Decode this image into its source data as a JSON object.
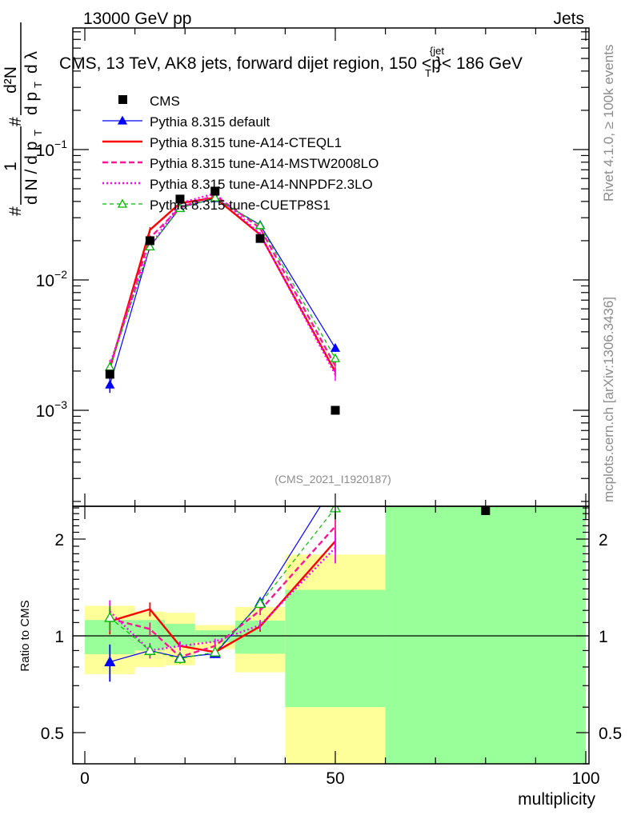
{
  "header": {
    "left": "13000 GeV pp",
    "right": "Jets"
  },
  "side_labels": {
    "rivet": "Rivet 4.1.0, ≥ 100k events",
    "mcplots": "mcplots.cern.ch [arXiv:1306.3436]"
  },
  "analysis_id": "(CMS_2021_I1920187)",
  "chart_data": {
    "type": "line",
    "title_parts": {
      "main": "CMS, 13 TeV, AK8 jets, forward dijet region, 150 <p",
      "sup": "{jet",
      "sub": "T",
      "tail": "}< 186 GeV"
    },
    "ylabel_parts": {
      "hash": "#",
      "one": "1",
      "den1": "d N / d p",
      "sub": "T",
      "num2": "d²N",
      "den2": "d p",
      "den2b": "d λ"
    },
    "xlabel": "multiplicity",
    "ratio_ylabel": "Ratio to CMS",
    "xlim": [
      -2.4,
      100.6
    ],
    "ylim": [
      0.00018,
      0.86
    ],
    "yscale": "log",
    "ratio_ylim": [
      0.4,
      2.53
    ],
    "x_ticks": [
      "0",
      "50",
      "100"
    ],
    "x_tick_values": [
      0,
      50,
      100
    ],
    "y_ticks": [
      {
        "base": "10",
        "exp": "−1",
        "value": 0.1
      },
      {
        "base": "10",
        "exp": "−2",
        "value": 0.01
      },
      {
        "base": "10",
        "exp": "−3",
        "value": 0.001
      }
    ],
    "ratio_ticks": [
      {
        "label": "2",
        "value": 2
      },
      {
        "label": "1",
        "value": 1
      },
      {
        "label": "0.5",
        "value": 0.5
      }
    ],
    "bins": [
      [
        0,
        10
      ],
      [
        10,
        16
      ],
      [
        16,
        22
      ],
      [
        22,
        30
      ],
      [
        30,
        40
      ],
      [
        40,
        60
      ],
      [
        60,
        100
      ]
    ],
    "x": [
      5,
      13,
      19,
      26,
      35,
      50,
      80
    ],
    "data": {
      "name": "CMS",
      "color": "#000000",
      "values": [
        0.00189,
        0.02,
        0.0417,
        0.048,
        0.0208,
        0.001,
        0.00017
      ]
    },
    "band_inner": {
      "color": "#99ff99",
      "low": [
        0.877,
        0.9,
        0.92,
        0.955,
        0.88,
        0.6,
        0.3
      ],
      "high": [
        1.12,
        1.12,
        1.09,
        1.04,
        1.115,
        1.39,
        3.0
      ]
    },
    "band_outer": {
      "color": "#ffff99",
      "low": [
        0.76,
        0.8,
        0.81,
        0.91,
        0.77,
        0.3,
        0.3
      ],
      "high": [
        1.24,
        1.19,
        1.18,
        1.08,
        1.23,
        1.79,
        3.0
      ]
    },
    "legend_position": "top-left",
    "series": [
      {
        "name": "Pythia 8.315 default",
        "color": "#0000ff",
        "style": "solid",
        "width": 1.2,
        "marker": "triangle-filled",
        "ratio": [
          0.83,
          0.9,
          0.857,
          0.88,
          1.27,
          3.0
        ],
        "ratio_err": [
          0.11,
          0.03,
          0.03,
          0.02,
          0.04,
          0.2
        ]
      },
      {
        "name": "Pythia 8.315 tune-A14-CTEQL1",
        "color": "#ff0000",
        "style": "solid",
        "width": 2.4,
        "marker": "none",
        "ratio": [
          1.11,
          1.21,
          0.93,
          0.89,
          1.07,
          1.97
        ],
        "ratio_err": [
          0.1,
          0.06,
          0.03,
          0.02,
          0.04,
          0.15
        ]
      },
      {
        "name": "Pythia 8.315 tune-A14-MSTW2008LO",
        "color": "#ff1493",
        "style": "dashed",
        "width": 2.4,
        "marker": "none",
        "ratio": [
          1.13,
          1.05,
          0.86,
          0.93,
          1.2,
          2.19
        ],
        "ratio_err": [
          0.1,
          0.05,
          0.03,
          0.02,
          0.04,
          0.2
        ]
      },
      {
        "name": "Pythia 8.315 tune-A14-NNPDF2.3LO",
        "color": "#ff00ff",
        "style": "dotted",
        "width": 2.4,
        "marker": "none",
        "ratio": [
          1.19,
          0.9,
          0.93,
          0.96,
          1.08,
          1.88
        ],
        "ratio_err": [
          0.1,
          0.05,
          0.03,
          0.02,
          0.04,
          0.2
        ]
      },
      {
        "name": "Pythia 8.315 tune-CUETP8S1",
        "color": "#00bb00",
        "style": "dashed-fine",
        "width": 1.2,
        "marker": "triangle-open",
        "ratio": [
          1.14,
          0.9,
          0.85,
          0.89,
          1.26,
          2.5
        ],
        "ratio_err": [
          0.1,
          0.04,
          0.03,
          0.02,
          0.04,
          0.2
        ]
      }
    ]
  }
}
